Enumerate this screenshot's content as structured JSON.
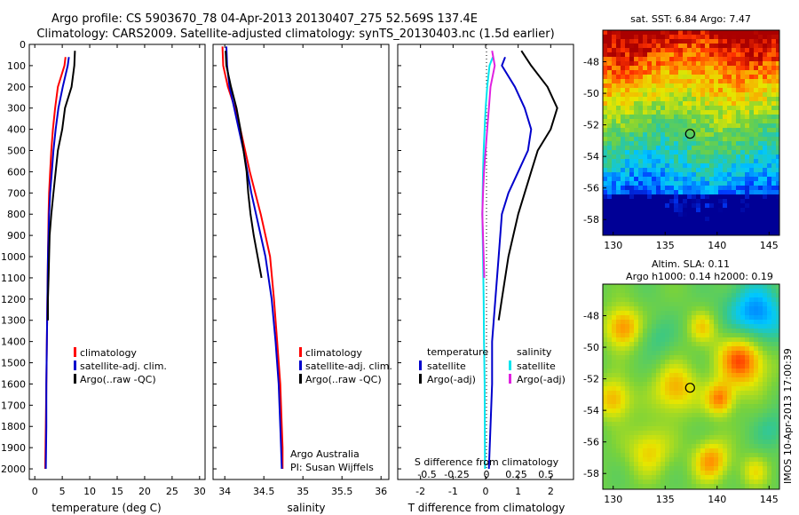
{
  "title": {
    "line1": "Argo profile: CS 5903670_78 04-Apr-2013 20130407_275 52.569S 137.4E",
    "line2": "Climatology: CARS2009. Satellite-adjusted climatology: synTS_20130403.nc (1.5d earlier)"
  },
  "credit": {
    "org": "Argo Australia",
    "pi": "PI: Susan Wijffels"
  },
  "side_label": "IMOS 10-Apr-2013 17:00:39",
  "colors": {
    "climatology": "#ff0000",
    "satellite": "#0000cc",
    "argo": "#000000",
    "salinity_satellite": "#00e5ee",
    "salinity_argo": "#e020e0"
  },
  "depth_axis": {
    "range": [
      0,
      2050
    ],
    "ticks": [
      0,
      100,
      200,
      300,
      400,
      500,
      600,
      700,
      800,
      900,
      1000,
      1100,
      1200,
      1300,
      1400,
      1500,
      1600,
      1700,
      1800,
      1900,
      2000
    ],
    "inverted": true
  },
  "chart_data": [
    {
      "type": "line",
      "xlabel": "temperature (deg C)",
      "xlim": [
        -1,
        31
      ],
      "xticks": [
        0,
        5,
        10,
        15,
        20,
        25,
        30
      ],
      "legend": [
        "climatology",
        "satellite-adj. clim.",
        "Argo(..raw -QC)"
      ],
      "legend_placement": "lower-right",
      "series": [
        {
          "name": "climatology",
          "color": "#ff0000",
          "x": [
            5.6,
            5.4,
            4.2,
            3.7,
            3.3,
            3.0,
            2.8,
            2.6,
            2.5,
            2.4,
            2.3,
            2.2,
            2.1,
            2.0,
            1.9
          ],
          "y": [
            60,
            100,
            200,
            300,
            400,
            500,
            600,
            700,
            800,
            1000,
            1200,
            1400,
            1600,
            1800,
            2000
          ]
        },
        {
          "name": "satellite-adj. clim.",
          "color": "#0000cc",
          "x": [
            6.2,
            6.0,
            5.1,
            4.3,
            3.8,
            3.4,
            3.1,
            2.8,
            2.6,
            2.4,
            2.3,
            2.2,
            2.1,
            2.1,
            2.0
          ],
          "y": [
            60,
            100,
            200,
            300,
            400,
            500,
            600,
            700,
            800,
            1000,
            1200,
            1400,
            1600,
            1800,
            2000
          ]
        },
        {
          "name": "Argo(..raw -QC)",
          "color": "#000000",
          "x": [
            7.3,
            7.2,
            6.7,
            5.5,
            5.0,
            4.2,
            3.8,
            3.4,
            3.0,
            2.7,
            2.6,
            2.5,
            2.4,
            2.4
          ],
          "y": [
            30,
            100,
            200,
            300,
            400,
            500,
            600,
            700,
            800,
            900,
            1000,
            1100,
            1200,
            1300
          ]
        }
      ]
    },
    {
      "type": "line",
      "xlabel": "salinity",
      "xlim": [
        33.85,
        36.1
      ],
      "xticks": [
        34,
        34.5,
        35,
        35.5,
        36
      ],
      "legend": [
        "climatology",
        "satellite-adj. clim.",
        "Argo(..raw -QC)"
      ],
      "legend_placement": "lower-right",
      "series": [
        {
          "name": "climatology",
          "color": "#ff0000",
          "x": [
            33.97,
            33.98,
            34.04,
            34.13,
            34.2,
            34.26,
            34.32,
            34.39,
            34.46,
            34.52,
            34.58,
            34.63,
            34.67,
            34.71,
            34.73,
            34.74,
            34.74
          ],
          "y": [
            10,
            100,
            200,
            300,
            400,
            500,
            600,
            700,
            800,
            900,
            1000,
            1200,
            1400,
            1600,
            1800,
            1900,
            2000
          ]
        },
        {
          "name": "satellite-adj. clim.",
          "color": "#0000cc",
          "x": [
            34.02,
            34.03,
            34.06,
            34.12,
            34.18,
            34.24,
            34.29,
            34.34,
            34.4,
            34.46,
            34.52,
            34.6,
            34.65,
            34.69,
            34.71,
            34.72,
            34.73
          ],
          "y": [
            10,
            100,
            200,
            300,
            400,
            500,
            600,
            700,
            800,
            900,
            1000,
            1200,
            1400,
            1600,
            1800,
            1900,
            2000
          ]
        },
        {
          "name": "Argo(..raw -QC)",
          "color": "#000000",
          "x": [
            34.01,
            34.02,
            34.08,
            34.15,
            34.2,
            34.24,
            34.28,
            34.3,
            34.33,
            34.37,
            34.42,
            34.47
          ],
          "y": [
            30,
            100,
            200,
            300,
            400,
            500,
            600,
            700,
            800,
            900,
            1000,
            1100
          ]
        }
      ]
    },
    {
      "type": "line",
      "xlabel": "T difference from climatology",
      "xlabel_top": "S difference from climatology",
      "xlim": [
        -2.7,
        2.7
      ],
      "xticks": [
        -2,
        -1,
        0,
        1,
        2
      ],
      "xticks_top": [
        -0.5,
        -0.25,
        0,
        0.25,
        0.5
      ],
      "legend": [
        "temperature",
        "satellite",
        "Argo(-adj)",
        "salinity",
        "satellite",
        "Argo(-adj)"
      ],
      "legend_placement": "lower",
      "series": [
        {
          "name": "satellite",
          "color": "#0000cc",
          "x": [
            0.6,
            0.5,
            0.9,
            1.2,
            1.4,
            1.3,
            1.0,
            0.7,
            0.5,
            0.4,
            0.3,
            0.2,
            0.2,
            0.1
          ],
          "y": [
            60,
            100,
            200,
            300,
            400,
            500,
            600,
            700,
            800,
            1000,
            1200,
            1400,
            1600,
            2000
          ]
        },
        {
          "name": "Argo(-adj)",
          "color": "#000000",
          "x": [
            1.1,
            1.4,
            1.9,
            2.2,
            2.0,
            1.6,
            1.4,
            1.2,
            1.0,
            0.7,
            0.5,
            0.4
          ],
          "y": [
            30,
            100,
            200,
            300,
            400,
            500,
            600,
            700,
            800,
            1000,
            1200,
            1300
          ]
        },
        {
          "name": "satellite",
          "color": "#00e5ee",
          "x": [
            0.22,
            0.12,
            0.05,
            0.0,
            -0.03,
            -0.06,
            -0.08,
            -0.09,
            -0.1,
            -0.08,
            -0.06,
            -0.05,
            -0.03,
            -0.02
          ],
          "y": [
            60,
            100,
            200,
            300,
            400,
            500,
            600,
            700,
            800,
            1000,
            1200,
            1400,
            1600,
            2000
          ]
        },
        {
          "name": "Argo(-adj)",
          "color": "#e020e0",
          "x": [
            0.2,
            0.28,
            0.15,
            0.1,
            0.05,
            0.0,
            -0.05,
            -0.08,
            -0.1,
            -0.06,
            -0.04
          ],
          "y": [
            30,
            100,
            200,
            300,
            400,
            500,
            600,
            700,
            800,
            1000,
            1100
          ]
        }
      ]
    },
    {
      "type": "heatmap",
      "title": "sat. SST: 6.84  Argo: 7.47",
      "xlim": [
        129,
        146
      ],
      "ylim": [
        -59,
        -46
      ],
      "xticks": [
        130,
        135,
        140,
        145
      ],
      "yticks": [
        -48,
        -50,
        -52,
        -54,
        -56,
        -58
      ],
      "marker": {
        "lon": 137.4,
        "lat": -52.569
      }
    },
    {
      "type": "heatmap",
      "title": "Altim. SLA: 0.11",
      "subtitle": "Argo h1000: 0.14 h2000: 0.19",
      "xlim": [
        129,
        146
      ],
      "ylim": [
        -59,
        -46
      ],
      "xticks": [
        130,
        135,
        140,
        145
      ],
      "yticks": [
        -48,
        -50,
        -52,
        -54,
        -56,
        -58
      ],
      "marker": {
        "lon": 137.4,
        "lat": -52.569
      }
    }
  ]
}
